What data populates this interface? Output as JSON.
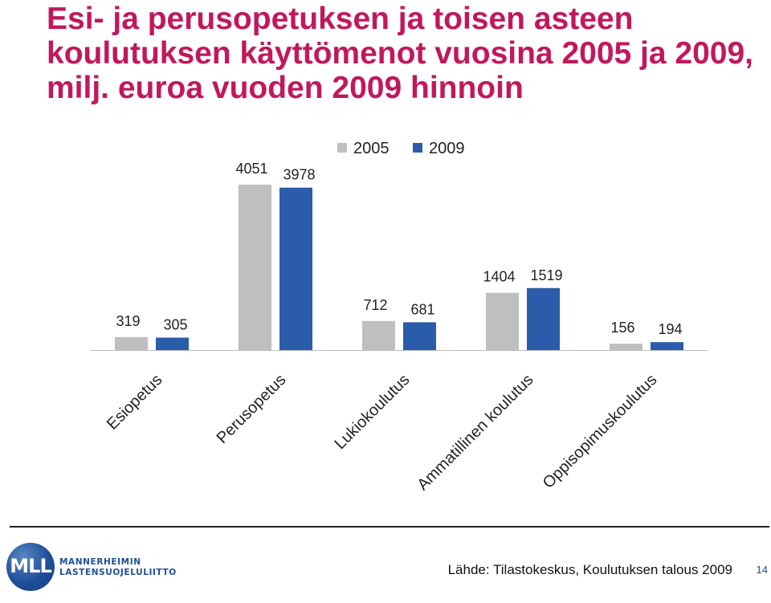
{
  "title": "Esi- ja perusopetuksen ja toisen asteen koulutuksen käyttömenot vuosina 2005 ja 2009, milj. euroa vuoden 2009 hinnoin",
  "colors": {
    "title": "#c1185c",
    "s2005": "#bfbfbf",
    "s2009": "#2a5caa",
    "axis": "#bfbfbf",
    "brand": "#1f4f9a"
  },
  "chart_data": {
    "type": "bar",
    "title": "Esi- ja perusopetuksen ja toisen asteen koulutuksen käyttömenot vuosina 2005 ja 2009, milj. euroa vuoden 2009 hinnoin",
    "categories": [
      "Esiopetus",
      "Perusopetus",
      "Lukiokoulutus",
      "Ammatillinen koulutus",
      "Oppisopimuskoulutus"
    ],
    "series": [
      {
        "name": "2005",
        "values": [
          319,
          4051,
          712,
          1404,
          156
        ]
      },
      {
        "name": "2009",
        "values": [
          305,
          3978,
          681,
          1519,
          194
        ]
      }
    ],
    "ylim": [
      0,
      4051
    ],
    "legend": "top-center",
    "grid": false,
    "xlabel": "",
    "ylabel": ""
  },
  "footer": {
    "logo_abbr": "MLL",
    "logo_line1": "MANNERHEIMIN",
    "logo_line2": "LASTENSUOJELULIITTO",
    "source": "Lähde: Tilastokeskus, Koulutuksen talous 2009",
    "page": "14"
  }
}
